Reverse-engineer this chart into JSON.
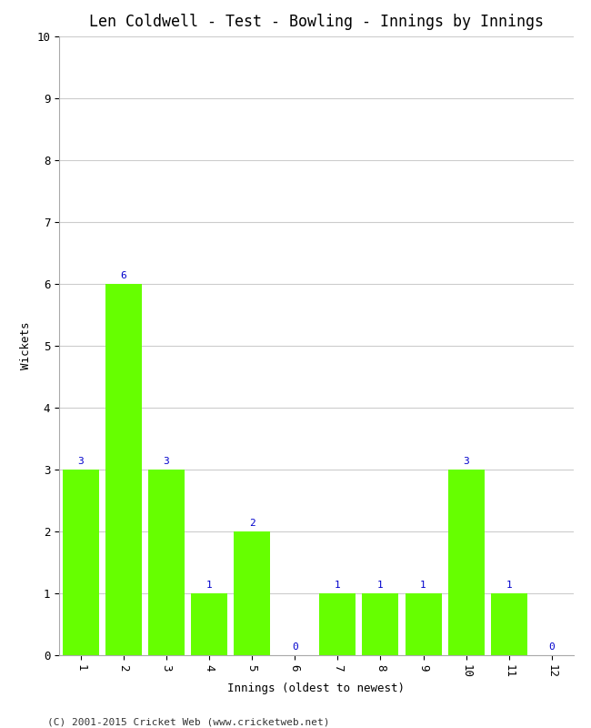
{
  "title": "Len Coldwell - Test - Bowling - Innings by Innings",
  "xlabel": "Innings (oldest to newest)",
  "ylabel": "Wickets",
  "categories": [
    "1",
    "2",
    "3",
    "4",
    "5",
    "6",
    "7",
    "8",
    "9",
    "10",
    "11",
    "12"
  ],
  "values": [
    3,
    6,
    3,
    1,
    2,
    0,
    1,
    1,
    1,
    3,
    1,
    0
  ],
  "bar_color": "#66ff00",
  "bar_edge_color": "#66ff00",
  "label_color": "#0000cc",
  "ylim": [
    0,
    10
  ],
  "yticks": [
    0,
    1,
    2,
    3,
    4,
    5,
    6,
    7,
    8,
    9,
    10
  ],
  "background_color": "#ffffff",
  "grid_color": "#cccccc",
  "title_fontsize": 12,
  "axis_label_fontsize": 9,
  "tick_fontsize": 9,
  "bar_label_fontsize": 8,
  "footer_text": "(C) 2001-2015 Cricket Web (www.cricketweb.net)",
  "footer_fontsize": 8
}
